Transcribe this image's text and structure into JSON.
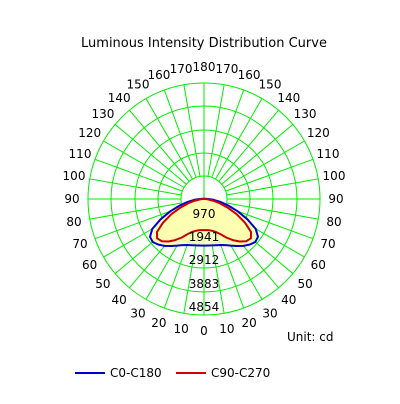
{
  "chart_data": {
    "type": "polar",
    "title": "Luminous Intensity Distribution Curve",
    "unit_label": "Unit: cd",
    "radial_ticks": [
      970,
      1941,
      2912,
      3883,
      4854
    ],
    "radial_max": 4854,
    "angle_step_deg": 10,
    "angle_labels_right": [
      0,
      10,
      20,
      30,
      40,
      50,
      60,
      70,
      80,
      90,
      100,
      110,
      120,
      130,
      140,
      150,
      160,
      170,
      180
    ],
    "angle_labels_left": [
      10,
      20,
      30,
      40,
      50,
      60,
      70,
      80,
      90,
      100,
      110,
      120,
      130,
      140,
      150,
      160,
      170
    ],
    "grid": true,
    "legend_position": "bottom",
    "colors": {
      "grid": "#00ee00",
      "fill": "#ffffb0",
      "C0-C180": "#0000cc",
      "C90-C270": "#cc0000"
    },
    "angles": [
      0,
      5,
      10,
      15,
      20,
      25,
      30,
      35,
      40,
      45,
      50,
      55,
      60,
      65,
      70,
      75,
      80,
      85,
      90,
      100,
      110,
      120,
      130,
      140,
      150,
      160,
      170,
      180
    ],
    "series": [
      {
        "name": "C0-C180",
        "values": [
          1950,
          1955,
          1970,
          2000,
          2050,
          2130,
          2250,
          2400,
          2560,
          2700,
          2800,
          2760,
          2500,
          2000,
          1500,
          1060,
          700,
          400,
          180,
          60,
          20,
          10,
          5,
          0,
          0,
          0,
          0,
          0
        ]
      },
      {
        "name": "C90-C270",
        "values": [
          1300,
          1305,
          1330,
          1380,
          1470,
          1620,
          1860,
          2100,
          2320,
          2500,
          2560,
          2400,
          1980,
          1500,
          1050,
          680,
          380,
          170,
          60,
          20,
          10,
          5,
          0,
          0,
          0,
          0,
          0,
          0
        ]
      }
    ]
  }
}
